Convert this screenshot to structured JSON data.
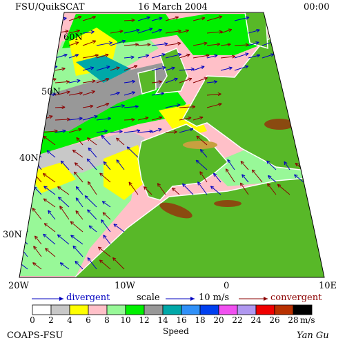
{
  "header": {
    "source": "FSU/QuikSCAT",
    "date": "16 March 2004",
    "time": "00:00"
  },
  "latitude_labels": [
    "60N",
    "50N",
    "40N",
    "30N"
  ],
  "longitude_labels": [
    "20W",
    "10W",
    "0",
    "10E"
  ],
  "legend": {
    "divergent": "divergent",
    "scale": "scale",
    "scale_value": "10 m/s",
    "convergent": "convergent"
  },
  "colorbar": {
    "ticks": [
      "0",
      "2",
      "4",
      "6",
      "8",
      "10",
      "12",
      "14",
      "16",
      "18",
      "20",
      "22",
      "24",
      "26",
      "28"
    ],
    "unit": "m/s",
    "label": "Speed",
    "colors": [
      "#ffffff",
      "#c8c8c8",
      "#ffff00",
      "#ffc0c8",
      "#98f898",
      "#00f000",
      "#989898",
      "#00a8a8",
      "#3090f8",
      "#0040f0",
      "#f050f0",
      "#b098f0",
      "#f00000",
      "#b83000",
      "#000000"
    ]
  },
  "footer": {
    "credit": "COAPS-FSU",
    "author": "Yan Gu"
  }
}
